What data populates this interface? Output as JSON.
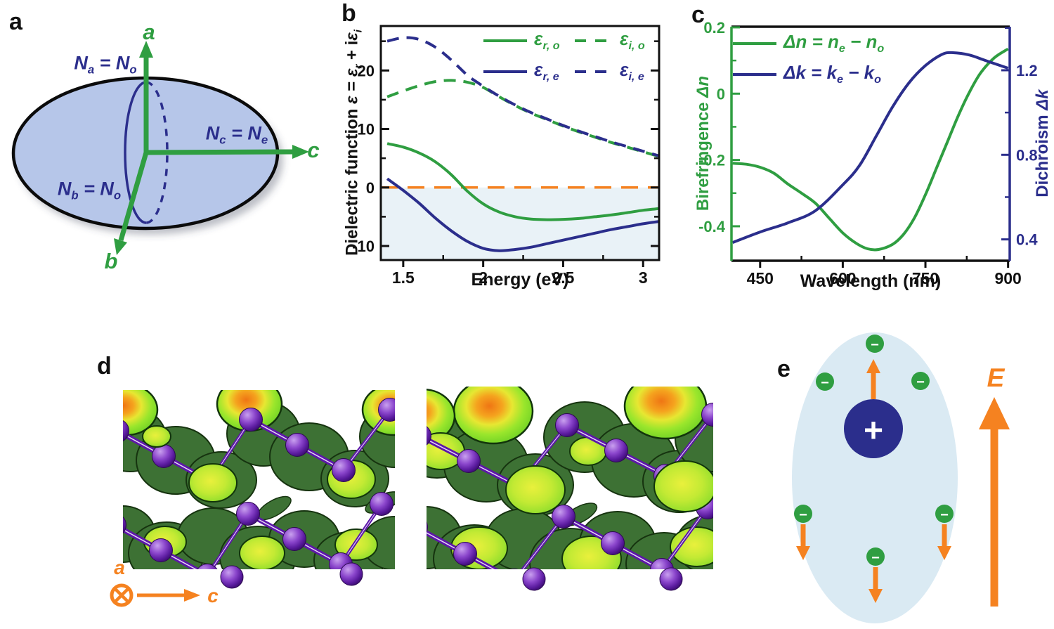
{
  "panels": {
    "a": {
      "letter": "a",
      "axis_labels": {
        "a": "a",
        "b": "b",
        "c": "c"
      },
      "labels": {
        "na": {
          "n1": "N",
          "s1": "a",
          "eq": " = ",
          "n2": "N",
          "s2": "o"
        },
        "nc": {
          "n1": "N",
          "s1": "c",
          "eq": " = ",
          "n2": "N",
          "s2": "e"
        },
        "nb": {
          "n1": "N",
          "s1": "b",
          "eq": " = ",
          "n2": "N",
          "s2": "o"
        }
      }
    },
    "b": {
      "letter": "b",
      "xlabel": "Energy (eV)",
      "ylabel": {
        "t1": "Dielectric function ",
        "e1": "ε",
        "t2": " = ",
        "e2": "ε",
        "s2": "r",
        "t3": " + i",
        "e3": "ε",
        "s3": "i"
      },
      "legend": [
        {
          "sym": "ε",
          "sub": "r, o"
        },
        {
          "sym": "ε",
          "sub": "i, o"
        },
        {
          "sym": "ε",
          "sub": "r, e"
        },
        {
          "sym": "ε",
          "sub": "i, e"
        }
      ]
    },
    "c": {
      "letter": "c",
      "xlabel": "Wavelength (nm)",
      "ylabel_left": {
        "t": "Birefringence ",
        "sym": "Δn"
      },
      "ylabel_right": {
        "t": "Dichroism ",
        "sym": "Δk"
      },
      "legend": [
        {
          "sym": "Δn",
          "eq": " = ",
          "v1": "n",
          "v1s": "e",
          "op": " − ",
          "v2": "n",
          "v2s": "o"
        },
        {
          "sym": "Δk",
          "eq": " = ",
          "v1": "k",
          "v1s": "e",
          "op": " − ",
          "v2": "k",
          "v2s": "o"
        }
      ]
    },
    "d": {
      "letter": "d",
      "axis_a": "a",
      "axis_c": "c"
    },
    "e": {
      "letter": "e",
      "plus": "+",
      "minus": "−",
      "field_label": "E"
    }
  },
  "colors": {
    "green": "#2f9e41",
    "navy": "#2b2e8c",
    "orange": "#f58220",
    "shade_below_zero": "#e9f2f7",
    "ellipsoid_fill": "#b6c6e9",
    "polarization_ellipse_fill": "#daeaf3"
  },
  "chart_data": [
    {
      "id": "dielectric_function",
      "type": "line",
      "xlabel": "Energy (eV)",
      "ylabel": "Dielectric function ε = εr + iεi",
      "xlim": [
        1.36,
        3.1
      ],
      "ylim": [
        -12.4,
        27.6
      ],
      "x_ticks": [
        [
          1.5,
          "1.5"
        ],
        [
          2,
          "2"
        ],
        [
          2.5,
          "2.5"
        ],
        [
          3,
          "3"
        ]
      ],
      "x_minor": [
        1.75,
        2.25,
        2.75
      ],
      "y_ticks": [
        [
          20,
          "20"
        ],
        [
          10,
          "10"
        ],
        [
          0,
          "0"
        ],
        [
          -10,
          "-10"
        ]
      ],
      "y_minor": [
        25,
        15,
        5,
        -5
      ],
      "zero_line": 0,
      "legend_position": "top-right",
      "grid": false,
      "series": [
        {
          "name": "eps_r_o",
          "color": "#2f9e41",
          "dashed": false,
          "x": [
            1.4,
            1.5,
            1.6,
            1.7,
            1.8,
            1.9,
            2.0,
            2.1,
            2.2,
            2.3,
            2.4,
            2.5,
            2.6,
            2.7,
            2.8,
            2.9,
            3.0,
            3.1
          ],
          "y": [
            7.5,
            6.9,
            5.9,
            4.4,
            2.2,
            -0.6,
            -2.8,
            -4.2,
            -5.0,
            -5.4,
            -5.5,
            -5.45,
            -5.3,
            -5.0,
            -4.7,
            -4.3,
            -3.9,
            -3.6
          ]
        },
        {
          "name": "eps_i_o",
          "color": "#2f9e41",
          "dashed": true,
          "x": [
            1.4,
            1.5,
            1.6,
            1.7,
            1.8,
            1.9,
            2.0,
            2.1,
            2.2,
            2.3,
            2.4,
            2.5,
            2.6,
            2.7,
            2.8,
            2.9,
            3.0,
            3.1
          ],
          "y": [
            15.5,
            16.5,
            17.4,
            18.1,
            18.3,
            18.0,
            17.1,
            15.5,
            14.0,
            12.7,
            11.6,
            10.5,
            9.5,
            8.6,
            7.7,
            6.9,
            6.1,
            5.3
          ]
        },
        {
          "name": "eps_r_e",
          "color": "#2b2e8c",
          "dashed": false,
          "x": [
            1.4,
            1.5,
            1.6,
            1.7,
            1.8,
            1.9,
            2.0,
            2.1,
            2.2,
            2.3,
            2.4,
            2.5,
            2.6,
            2.7,
            2.8,
            2.9,
            3.0,
            3.1
          ],
          "y": [
            1.5,
            -0.5,
            -2.7,
            -5.2,
            -7.4,
            -9.2,
            -10.4,
            -10.8,
            -10.6,
            -10.2,
            -9.6,
            -9.0,
            -8.4,
            -7.8,
            -7.2,
            -6.7,
            -6.2,
            -5.8
          ]
        },
        {
          "name": "eps_i_e",
          "color": "#2b2e8c",
          "dashed": true,
          "x": [
            1.4,
            1.5,
            1.6,
            1.7,
            1.8,
            1.9,
            1.95,
            2.0,
            2.1,
            2.2,
            2.3,
            2.4,
            2.5,
            2.6,
            2.7,
            2.8,
            2.9,
            3.0,
            3.1
          ],
          "y": [
            25.0,
            25.6,
            25.3,
            24.0,
            21.8,
            19.2,
            18.2,
            17.3,
            15.6,
            14.1,
            12.8,
            11.7,
            10.6,
            9.6,
            8.7,
            7.8,
            7.0,
            6.2,
            5.4
          ]
        }
      ]
    },
    {
      "id": "birefringence_dichroism",
      "type": "line",
      "xlabel": "Wavelength (nm)",
      "ylabel_left": "Birefringence Δn",
      "ylabel_right": "Dichroism Δk",
      "xlim": [
        398,
        903
      ],
      "ylim_left": [
        -0.504,
        0.202
      ],
      "ylim_right": [
        0.299,
        1.406
      ],
      "x_ticks": [
        [
          450,
          "450"
        ],
        [
          600,
          "600"
        ],
        [
          750,
          "750"
        ],
        [
          900,
          "900"
        ]
      ],
      "x_minor": [
        525,
        675,
        825
      ],
      "y_ticks_left": [
        [
          0.2,
          "0.2"
        ],
        [
          0,
          "0"
        ],
        [
          -0.2,
          "-0.2"
        ],
        [
          -0.4,
          "-0.4"
        ]
      ],
      "y_minor_left": [
        0.1,
        -0.1,
        -0.3
      ],
      "y_ticks_right": [
        [
          1.2,
          "1.2"
        ],
        [
          0.8,
          "0.8"
        ],
        [
          0.4,
          "0.4"
        ]
      ],
      "y_minor_right": [
        1.4,
        1.0,
        0.6
      ],
      "legend_position": "top-left",
      "grid": false,
      "series": [
        {
          "name": "delta_n",
          "axis": "left",
          "color": "#2f9e41",
          "dashed": false,
          "x": [
            400,
            425,
            450,
            475,
            500,
            525,
            550,
            575,
            600,
            625,
            645,
            665,
            690,
            710,
            730,
            750,
            770,
            790,
            810,
            830,
            850,
            875,
            900
          ],
          "y": [
            -0.21,
            -0.213,
            -0.222,
            -0.24,
            -0.272,
            -0.3,
            -0.33,
            -0.375,
            -0.42,
            -0.452,
            -0.468,
            -0.47,
            -0.455,
            -0.425,
            -0.375,
            -0.305,
            -0.225,
            -0.145,
            -0.065,
            0.005,
            0.062,
            0.108,
            0.135
          ]
        },
        {
          "name": "delta_k",
          "axis": "right",
          "color": "#2b2e8c",
          "dashed": false,
          "x": [
            400,
            450,
            500,
            550,
            600,
            630,
            660,
            690,
            720,
            750,
            780,
            800,
            830,
            860,
            900
          ],
          "y": [
            0.385,
            0.435,
            0.478,
            0.535,
            0.658,
            0.748,
            0.885,
            1.025,
            1.14,
            1.222,
            1.275,
            1.283,
            1.272,
            1.245,
            1.21
          ]
        }
      ]
    }
  ]
}
